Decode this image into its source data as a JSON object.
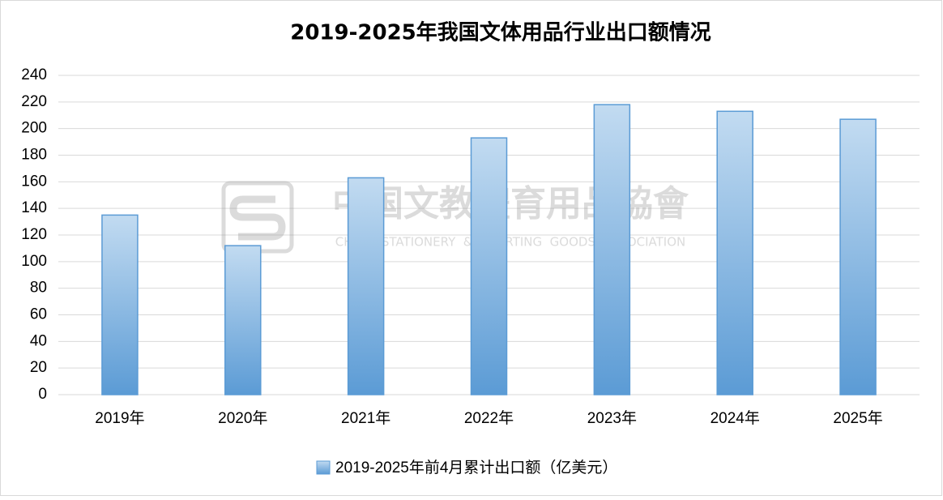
{
  "chart_data": {
    "type": "bar",
    "title": "2019-2025年我国文体用品行业出口额情况",
    "categories": [
      "2019年",
      "2020年",
      "2021年",
      "2022年",
      "2023年",
      "2024年",
      "2025年"
    ],
    "series": [
      {
        "name": "2019-2025年前4月累计出口额（亿美元）",
        "color": "#5b9bd5",
        "values": [
          135,
          112,
          163,
          193,
          218,
          213,
          207
        ]
      }
    ],
    "ylim": [
      0,
      240
    ],
    "yticks": [
      0,
      20,
      40,
      60,
      80,
      100,
      120,
      140,
      160,
      180,
      200,
      220,
      240
    ],
    "grid": true,
    "legend": "bottom",
    "watermark": "中国文教體育用品協會",
    "watermark_en": "CHINA  STATIONERY  &  SPORTING  GOODS  ASSOCIATION"
  }
}
